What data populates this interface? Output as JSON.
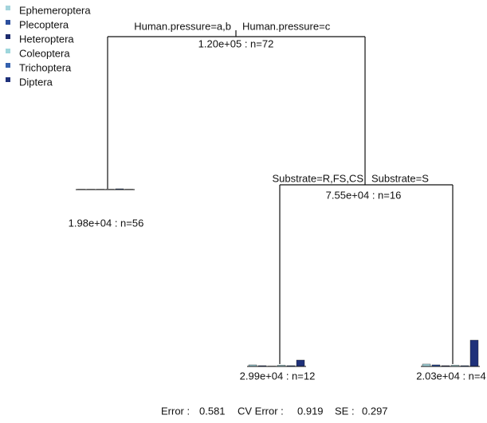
{
  "legend": {
    "items": [
      {
        "name": "Ephemeroptera",
        "color": "#a3d4dc"
      },
      {
        "name": "Plecoptera",
        "color": "#2c4f9e"
      },
      {
        "name": "Heteroptera",
        "color": "#1d2c6e"
      },
      {
        "name": "Coleoptera",
        "color": "#9ed6dc"
      },
      {
        "name": "Trichoptera",
        "color": "#3461ae"
      },
      {
        "name": "Diptera",
        "color": "#1f317a"
      }
    ]
  },
  "tree": {
    "splits": [
      {
        "node": "1.20e+05 : n=72",
        "left": "Human.pressure=a,b",
        "right": "Human.pressure=c"
      },
      {
        "node": "7.55e+04 : n=16",
        "left": "Substrate=R,FS,CS",
        "right": "Substrate=S"
      }
    ],
    "leaves": [
      {
        "label": "1.98e+04 : n=56",
        "bars": [
          0.5,
          0.5,
          0.5,
          0.5,
          1,
          0.5
        ]
      },
      {
        "label": "2.99e+04 : n=12",
        "bars": [
          2,
          1,
          0.5,
          1.5,
          1,
          8
        ]
      },
      {
        "label": "2.03e+04 : n=4",
        "bars": [
          3,
          2,
          1,
          1.5,
          1,
          33
        ]
      }
    ]
  },
  "footer": {
    "error_label": "Error :",
    "error": 0.581,
    "cv_label": "CV Error :",
    "cv": 0.919,
    "se_label": "SE :",
    "se": 0.297
  }
}
